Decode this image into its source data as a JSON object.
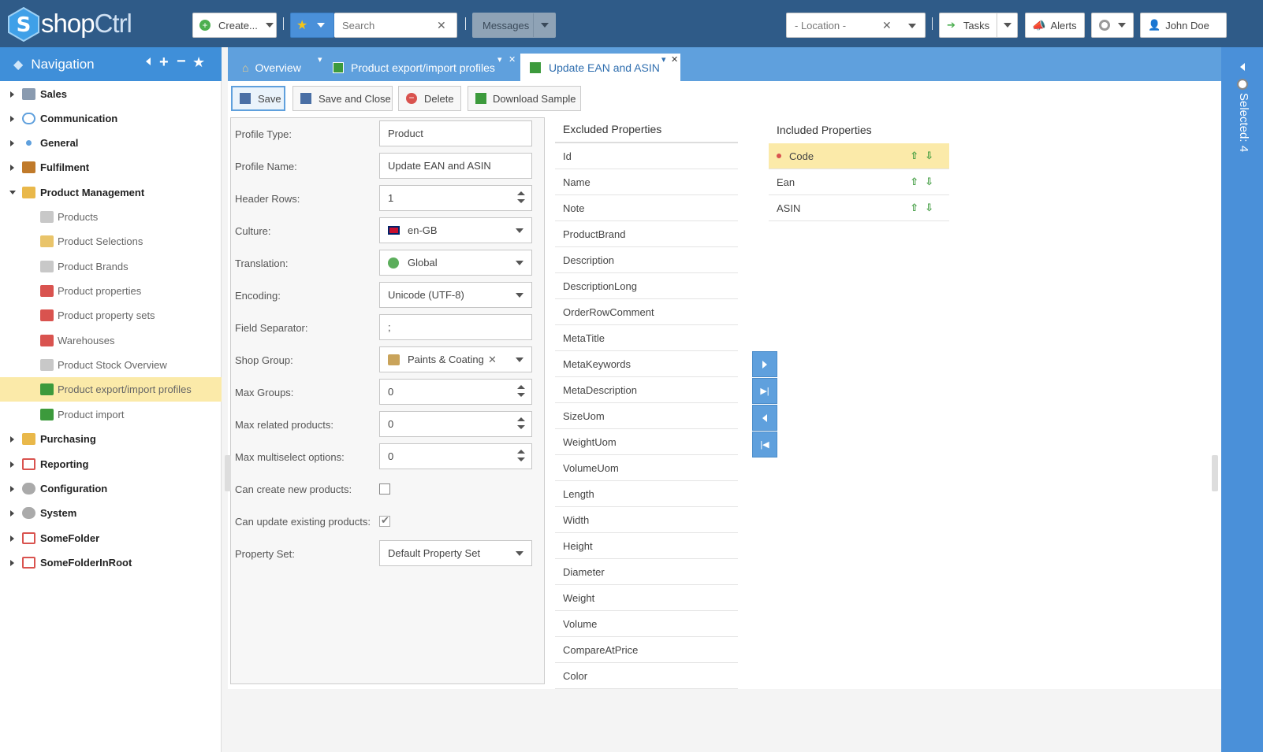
{
  "app": {
    "logo_part1": "shop",
    "logo_part2": "Ctrl"
  },
  "toolbar": {
    "create_label": "Create...",
    "search_placeholder": "Search",
    "messages_label": "Messages",
    "location_placeholder": "- Location -",
    "tasks_label": "Tasks",
    "alerts_label": "Alerts",
    "user_name": "John Doe"
  },
  "navigation": {
    "title": "Navigation",
    "items": [
      {
        "label": "Sales",
        "color": "#8a9bb0"
      },
      {
        "label": "Communication",
        "color": "#5fa0dd"
      },
      {
        "label": "General",
        "color": "#5fa0dd"
      },
      {
        "label": "Fulfilment",
        "color": "#c07a2a"
      },
      {
        "label": "Product Management",
        "color": "#e9b84a"
      },
      {
        "label": "Products",
        "color": "#aaa"
      },
      {
        "label": "Product Selections",
        "color": "#e9b84a"
      },
      {
        "label": "Product Brands",
        "color": "#aaa"
      },
      {
        "label": "Product properties",
        "color": "#d9534f"
      },
      {
        "label": "Product property sets",
        "color": "#d9534f"
      },
      {
        "label": "Warehouses",
        "color": "#d9534f"
      },
      {
        "label": "Product Stock Overview",
        "color": "#aaa"
      },
      {
        "label": "Product export/import profiles",
        "color": "#3c9a3c"
      },
      {
        "label": "Product import",
        "color": "#3c9a3c"
      },
      {
        "label": "Purchasing",
        "color": "#e9b84a"
      },
      {
        "label": "Reporting",
        "color": "#d9534f"
      },
      {
        "label": "Configuration",
        "color": "#999"
      },
      {
        "label": "System",
        "color": "#999"
      },
      {
        "label": "SomeFolder",
        "color": "#d9534f"
      },
      {
        "label": "SomeFolderInRoot",
        "color": "#d9534f"
      }
    ]
  },
  "tabs": [
    {
      "label": "Overview"
    },
    {
      "label": "Product export/import profiles"
    },
    {
      "label": "Update EAN and ASIN"
    }
  ],
  "actions": {
    "save": "Save",
    "save_close": "Save and Close",
    "delete": "Delete",
    "download": "Download Sample"
  },
  "form": {
    "profile_type": {
      "label": "Profile Type:",
      "value": "Product"
    },
    "profile_name": {
      "label": "Profile Name:",
      "value": "Update EAN and ASIN"
    },
    "header_rows": {
      "label": "Header Rows:",
      "value": "1"
    },
    "culture": {
      "label": "Culture:",
      "value": "en-GB"
    },
    "translation": {
      "label": "Translation:",
      "value": "Global"
    },
    "encoding": {
      "label": "Encoding:",
      "value": "Unicode (UTF-8)"
    },
    "field_separator": {
      "label": "Field Separator:",
      "value": ";"
    },
    "shop_group": {
      "label": "Shop Group:",
      "value": "Paints & Coating"
    },
    "max_groups": {
      "label": "Max Groups:",
      "value": "0"
    },
    "max_related": {
      "label": "Max related products:",
      "value": "0"
    },
    "max_multiselect": {
      "label": "Max multiselect options:",
      "value": "0"
    },
    "can_create": {
      "label": "Can create new products:",
      "checked": false
    },
    "can_update": {
      "label": "Can update existing products:",
      "checked": true
    },
    "property_set": {
      "label": "Property Set:",
      "value": "Default Property Set"
    }
  },
  "excluded": {
    "title": "Excluded Properties",
    "items": [
      "Id",
      "Name",
      "Note",
      "ProductBrand",
      "Description",
      "DescriptionLong",
      "OrderRowComment",
      "MetaTitle",
      "MetaKeywords",
      "MetaDescription",
      "SizeUom",
      "WeightUom",
      "VolumeUom",
      "Length",
      "Width",
      "Height",
      "Diameter",
      "Weight",
      "Volume",
      "CompareAtPrice",
      "Color"
    ]
  },
  "included": {
    "title": "Included Properties",
    "items": [
      "Code",
      "Ean",
      "ASIN"
    ]
  },
  "right_panel": {
    "selected_label": "Selected: 4"
  }
}
